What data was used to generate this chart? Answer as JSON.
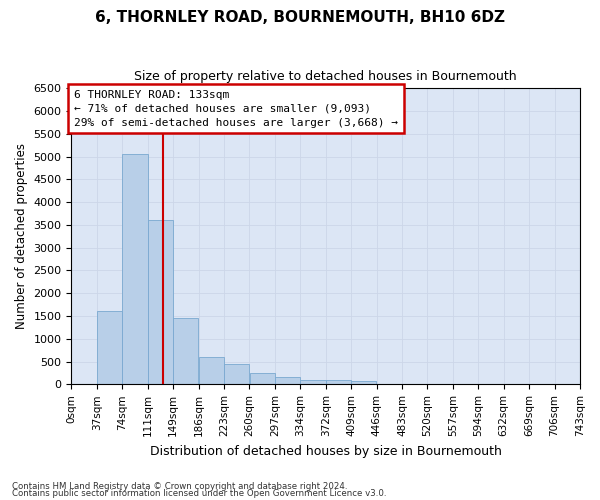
{
  "title": "6, THORNLEY ROAD, BOURNEMOUTH, BH10 6DZ",
  "subtitle": "Size of property relative to detached houses in Bournemouth",
  "xlabel": "Distribution of detached houses by size in Bournemouth",
  "ylabel": "Number of detached properties",
  "bin_labels": [
    "0sqm",
    "37sqm",
    "74sqm",
    "111sqm",
    "149sqm",
    "186sqm",
    "223sqm",
    "260sqm",
    "297sqm",
    "334sqm",
    "372sqm",
    "409sqm",
    "446sqm",
    "483sqm",
    "520sqm",
    "557sqm",
    "594sqm",
    "632sqm",
    "669sqm",
    "706sqm",
    "743sqm"
  ],
  "bar_values": [
    0,
    1600,
    5050,
    3600,
    1450,
    600,
    450,
    250,
    150,
    100,
    100,
    70,
    0,
    0,
    0,
    0,
    0,
    0,
    0,
    0
  ],
  "bar_color": "#b8cfe8",
  "bar_edge_color": "#7aa8d0",
  "vline_x": 133,
  "ylim": [
    0,
    6500
  ],
  "yticks": [
    0,
    500,
    1000,
    1500,
    2000,
    2500,
    3000,
    3500,
    4000,
    4500,
    5000,
    5500,
    6000,
    6500
  ],
  "annotation_title": "6 THORNLEY ROAD: 133sqm",
  "annotation_line1": "← 71% of detached houses are smaller (9,093)",
  "annotation_line2": "29% of semi-detached houses are larger (3,668) →",
  "annotation_box_color": "#ffffff",
  "annotation_box_edge_color": "#cc0000",
  "grid_color": "#ccd6e8",
  "bg_color": "#dce6f5",
  "footer1": "Contains HM Land Registry data © Crown copyright and database right 2024.",
  "footer2": "Contains public sector information licensed under the Open Government Licence v3.0.",
  "bin_width": 37,
  "n_bins": 20
}
